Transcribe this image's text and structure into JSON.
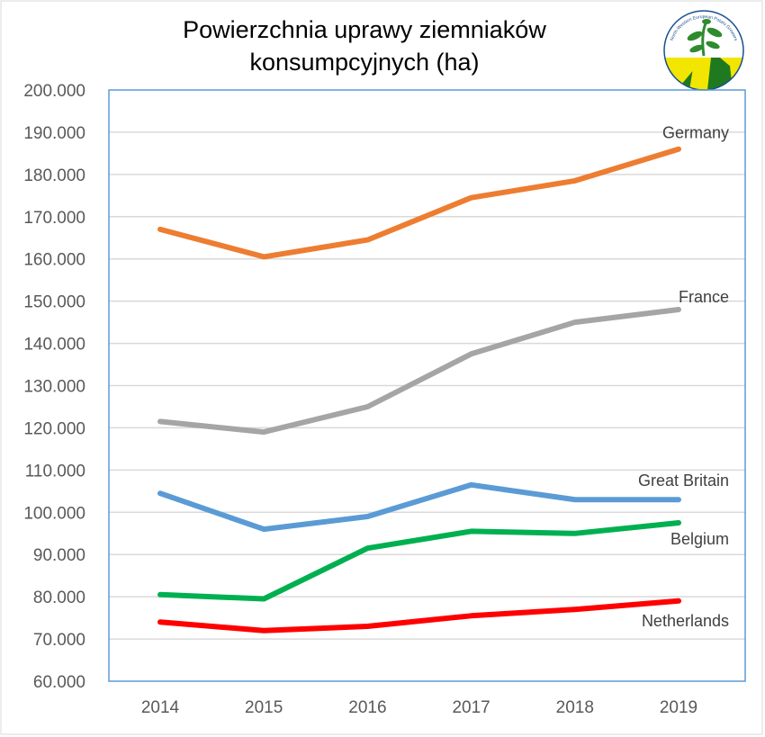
{
  "chart_data": {
    "type": "line",
    "title": [
      "Powierzchnia uprawy ziemniaków",
      "konsumpcyjnych (ha)"
    ],
    "xlabel": "",
    "ylabel": "",
    "x": [
      "2014",
      "2015",
      "2016",
      "2017",
      "2018",
      "2019"
    ],
    "ylim": [
      60000,
      200000
    ],
    "yticks": [
      "60.000",
      "70.000",
      "80.000",
      "90.000",
      "100.000",
      "110.000",
      "120.000",
      "130.000",
      "140.000",
      "150.000",
      "160.000",
      "170.000",
      "180.000",
      "190.000",
      "200.000"
    ],
    "grid": true,
    "legend": "direct labels at line ends",
    "series": [
      {
        "name": "Germany",
        "color": "#ed7d31",
        "values": [
          167000,
          160500,
          164500,
          174500,
          178500,
          186000
        ]
      },
      {
        "name": "France",
        "color": "#a5a5a5",
        "values": [
          121500,
          119000,
          125000,
          137500,
          145000,
          148000
        ]
      },
      {
        "name": "Great Britain",
        "color": "#5b9bd5",
        "values": [
          104500,
          96000,
          99000,
          106500,
          103000,
          103000
        ]
      },
      {
        "name": "Belgium",
        "color": "#00b050",
        "values": [
          80500,
          79500,
          91500,
          95500,
          95000,
          97500
        ]
      },
      {
        "name": "Netherlands",
        "color": "#ff0000",
        "values": [
          74000,
          72000,
          73000,
          75500,
          77000,
          79000
        ]
      }
    ]
  },
  "logo": {
    "name": "circle-logo-icon",
    "text": "North-Western European Potato Growers"
  }
}
